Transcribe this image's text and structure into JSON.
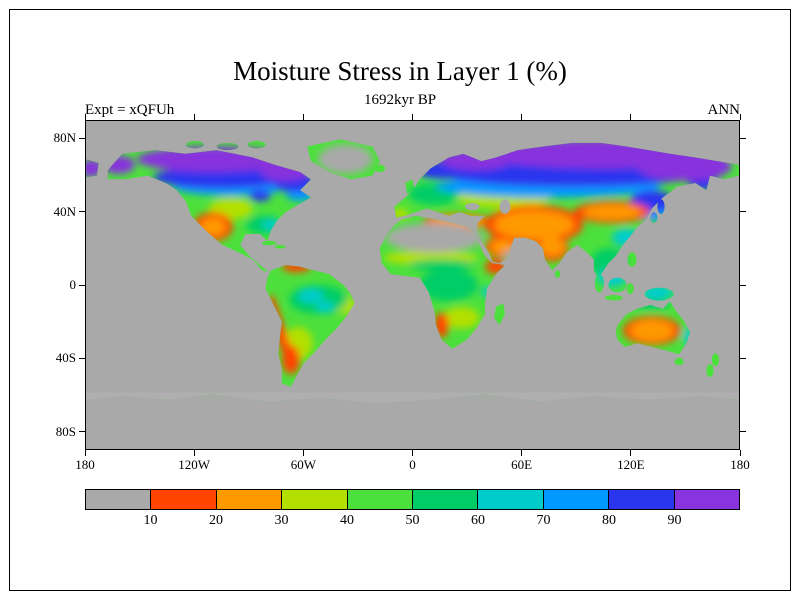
{
  "figure": {
    "title": "Moisture Stress in Layer 1 (%)",
    "subtitle": "1692kyr BP",
    "experiment_label": "Expt = xQFUh",
    "season_label": "ANN"
  },
  "axes": {
    "x_tick_labels": [
      "180",
      "120W",
      "60W",
      "0",
      "60E",
      "120E",
      "180"
    ],
    "y_tick_labels": [
      "80N",
      "40N",
      "0",
      "40S",
      "80S"
    ]
  },
  "colorbar": {
    "tick_labels": [
      "10",
      "20",
      "30",
      "40",
      "50",
      "60",
      "70",
      "80",
      "90"
    ],
    "colors": [
      "#a9a9a9",
      "#ff4400",
      "#ff9900",
      "#b3e000",
      "#4ce03c",
      "#00cd66",
      "#00cccc",
      "#0099ff",
      "#2a36ee",
      "#8833dd"
    ],
    "ocean_color": "#a9a9a9"
  },
  "chart_data": {
    "type": "heatmap",
    "title": "Moisture Stress in Layer 1 (%)",
    "subtitle": "1692kyr BP",
    "experiment": "xQFUh",
    "season": "ANN",
    "units": "%",
    "projection": "equirectangular world map, 90N to 90S, 180W to 180E",
    "x_axis_ticks": [
      "180",
      "120W",
      "60W",
      "0",
      "60E",
      "120E",
      "180"
    ],
    "y_axis_ticks": [
      "80N",
      "40N",
      "0",
      "40S",
      "80S"
    ],
    "contour_levels_percent": [
      10,
      20,
      30,
      40,
      50,
      60,
      70,
      80,
      90
    ],
    "level_colors": [
      "#a9a9a9",
      "#ff4400",
      "#ff9900",
      "#b3e000",
      "#4ce03c",
      "#00cd66",
      "#00cccc",
      "#0099ff",
      "#2a36ee",
      "#8833dd"
    ],
    "masked_regions_color": "#a9a9a9",
    "regions_approx": [
      {
        "region": "Northern Canada and Alaska",
        "value_percent": "80-100"
      },
      {
        "region": "Eastern Canada / Labrador",
        "value_percent": "70-100"
      },
      {
        "region": "Central and Eastern United States",
        "value_percent": "40-60"
      },
      {
        "region": "Southwestern US / Northern Mexico",
        "value_percent": "10-30"
      },
      {
        "region": "Greenland interior",
        "value_percent": "<10 (masked gray)"
      },
      {
        "region": "Scandinavia / NW Russia",
        "value_percent": "70-100"
      },
      {
        "region": "Europe mid-latitudes",
        "value_percent": "40-60"
      },
      {
        "region": "Northern Siberia",
        "value_percent": "80-100"
      },
      {
        "region": "NE China / Japan region",
        "value_percent": "60-90"
      },
      {
        "region": "Central Asia / Middle East",
        "value_percent": "10-30"
      },
      {
        "region": "Gobi / North China belt",
        "value_percent": "10-30"
      },
      {
        "region": "Arabia",
        "value_percent": "10-30"
      },
      {
        "region": "India",
        "value_percent": "10-30"
      },
      {
        "region": "Southeast Asia / Indonesia",
        "value_percent": "50-80"
      },
      {
        "region": "Sahara",
        "value_percent": "<10 (masked gray)"
      },
      {
        "region": "Sahel band",
        "value_percent": "30-50"
      },
      {
        "region": "Central Africa",
        "value_percent": "40-60"
      },
      {
        "region": "Southwestern Africa margins",
        "value_percent": "10-30"
      },
      {
        "region": "Amazon basin",
        "value_percent": "50-80"
      },
      {
        "region": "Andes strip",
        "value_percent": "10-30"
      },
      {
        "region": "Argentina / Patagonia",
        "value_percent": "10-40"
      },
      {
        "region": "Australian interior",
        "value_percent": "10-30"
      },
      {
        "region": "Australian coasts / Tasmania / New Zealand",
        "value_percent": "30-60"
      },
      {
        "region": "Antarctica",
        "value_percent": "<10 (masked gray)"
      },
      {
        "region": "Oceans",
        "value_percent": "masked gray"
      }
    ]
  }
}
